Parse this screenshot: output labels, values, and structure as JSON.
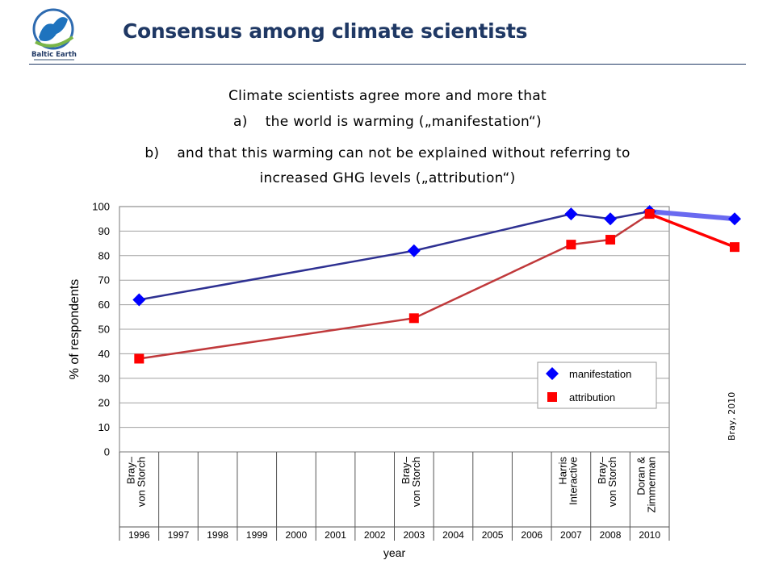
{
  "header": {
    "title": "Consensus among climate scientists",
    "logo_text": "Baltic Earth",
    "logo_icon": "baltic-earth-logo"
  },
  "bullets": {
    "intro": "Climate scientists agree more and more that",
    "item_a_marker": "a)",
    "item_a_text": "the world is warming („manifestation“)",
    "item_b_marker": "b)",
    "item_b_text": "and that this warming can not be explained without referring to",
    "item_b_cont": "increased GHG levels („attribution“)"
  },
  "source_note": "Bray, 2010",
  "colors": {
    "title": "#1F3864",
    "manifestation_line": "#2E3192",
    "manifestation_marker": "#0000FF",
    "attribution_line": "#C0393B",
    "attribution_marker": "#FF0000"
  },
  "chart_data": {
    "type": "line",
    "ylabel": "% of respondents",
    "xlabel": "year",
    "ylim": [
      0,
      100
    ],
    "yticks": [
      0,
      10,
      20,
      30,
      40,
      50,
      60,
      70,
      80,
      90,
      100
    ],
    "grid": true,
    "legend_position": "lower-right",
    "years": [
      "1996",
      "1997",
      "1998",
      "1999",
      "2000",
      "2001",
      "2002",
      "2003",
      "2004",
      "2005",
      "2006",
      "2007",
      "2008",
      "2010"
    ],
    "surveys": [
      {
        "year": "1996",
        "label": [
          "Bray–",
          "von Storch"
        ]
      },
      {
        "year": "2003",
        "label": [
          "Bray–",
          "von Storch"
        ]
      },
      {
        "year": "2007",
        "label": [
          "Harris",
          "Interactive"
        ]
      },
      {
        "year": "2008",
        "label": [
          "Bray–",
          "von Storch"
        ]
      },
      {
        "year": "2010",
        "label": [
          "Doran &",
          "Zimmerman"
        ]
      }
    ],
    "series": [
      {
        "name": "manifestation",
        "marker": "diamond",
        "points": [
          {
            "year": "1996",
            "value": 62
          },
          {
            "year": "2003",
            "value": 82
          },
          {
            "year": "2007",
            "value": 97
          },
          {
            "year": "2008",
            "value": 95
          },
          {
            "year": "2010",
            "value": 98
          },
          {
            "year": "2010 (Bray)",
            "value": 95
          }
        ]
      },
      {
        "name": "attribution",
        "marker": "square",
        "points": [
          {
            "year": "1996",
            "value": 38
          },
          {
            "year": "2003",
            "value": 54.5
          },
          {
            "year": "2007",
            "value": 84.5
          },
          {
            "year": "2008",
            "value": 86.5
          },
          {
            "year": "2010",
            "value": 97
          },
          {
            "year": "2010 (Bray)",
            "value": 83.5
          }
        ]
      }
    ]
  }
}
